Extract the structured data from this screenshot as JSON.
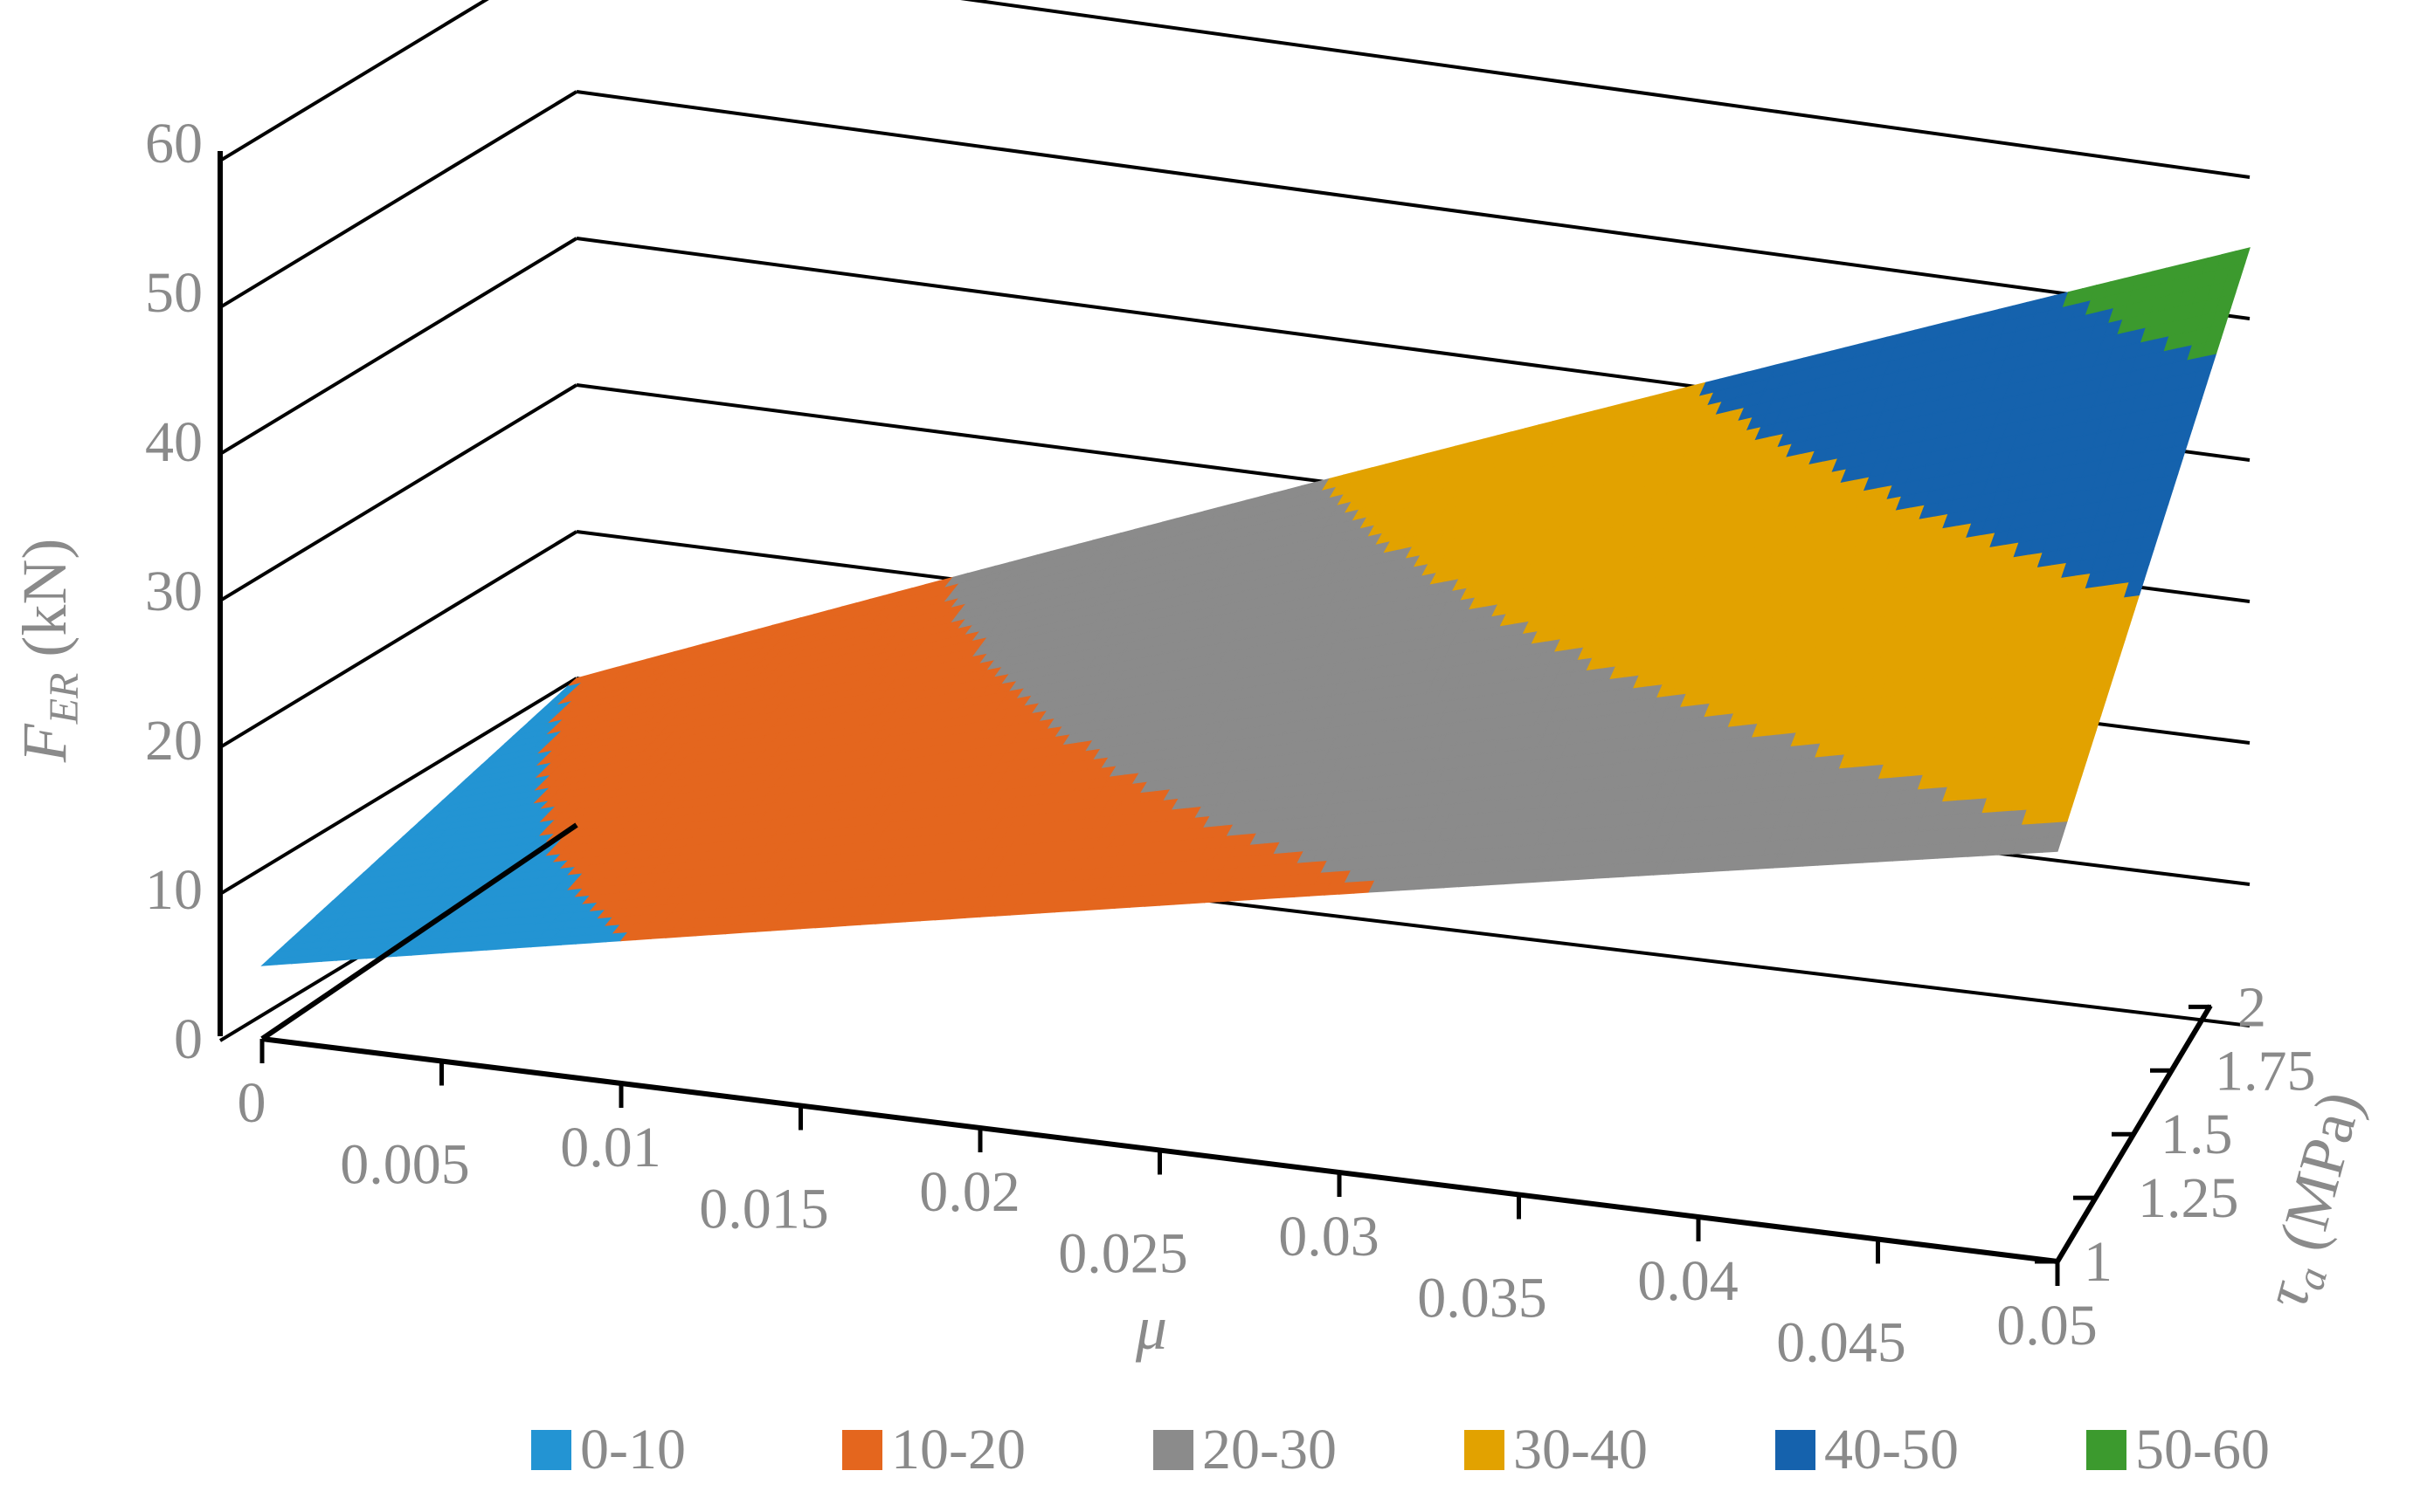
{
  "chart_data": {
    "type": "surface",
    "title": "",
    "z_label": {
      "main": "F",
      "sub": "ER",
      "unit": "(kN)"
    },
    "x_label": "μ",
    "y_label": {
      "main": "τ",
      "sub": "a",
      "unit": "(MPa)"
    },
    "z_ticks": [
      "0",
      "10",
      "20",
      "30",
      "40",
      "50",
      "60"
    ],
    "zlim": [
      0,
      60
    ],
    "x_ticks": [
      "0",
      "0.005",
      "0.01",
      "0.015",
      "0.02",
      "0.025",
      "0.03",
      "0.035",
      "0.04",
      "0.045",
      "0.05"
    ],
    "xlim": [
      0,
      0.05
    ],
    "y_ticks": [
      "1",
      "1.25",
      "1.5",
      "1.75",
      "2"
    ],
    "ylim": [
      1,
      2
    ],
    "corner_values": [
      {
        "mu": 0,
        "tau": 1,
        "F": 5
      },
      {
        "mu": 0,
        "tau": 2,
        "F": 10
      },
      {
        "mu": 0.05,
        "tau": 1,
        "F": 29
      },
      {
        "mu": 0.05,
        "tau": 2,
        "F": 55
      }
    ],
    "legend": [
      {
        "label": "0-10",
        "color": "#2394d3"
      },
      {
        "label": "10-20",
        "color": "#e4661e"
      },
      {
        "label": "20-30",
        "color": "#8b8b8b"
      },
      {
        "label": "30-40",
        "color": "#e2a200"
      },
      {
        "label": "40-50",
        "color": "#1562ad"
      },
      {
        "label": "50-60",
        "color": "#3c9a2e"
      }
    ]
  }
}
